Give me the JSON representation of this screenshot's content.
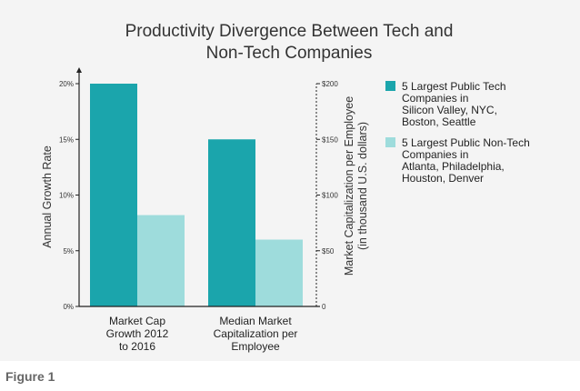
{
  "chart_data": {
    "type": "bar",
    "title": "Productivity Divergence Between Tech and Non-Tech Companies",
    "title_lines": [
      "Productivity Divergence Between Tech and",
      "Non-Tech Companies"
    ],
    "categories": [
      "Market Cap Growth 2012 to 2016",
      "Median Market Capitalization per Employee"
    ],
    "category_lines": [
      [
        "Market Cap",
        "Growth 2012",
        "to 2016"
      ],
      [
        "Median Market",
        "Capitalization per",
        "Employee"
      ]
    ],
    "series": [
      {
        "name": "5 Largest Public Tech Companies in Silicon Valley, NYC, Boston, Seattle",
        "legend_lines": [
          "5 Largest Public Tech",
          "Companies in",
          "Silicon Valley, NYC,",
          "Boston, Seattle"
        ],
        "color": "#1ba5ac",
        "values": [
          20,
          150
        ],
        "units": [
          "%",
          "thousand USD"
        ]
      },
      {
        "name": "5 Largest Public Non-Tech Companies in Atlanta, Philadelphia, Houston, Denver",
        "legend_lines": [
          "5 Largest Public Non-Tech",
          "Companies in",
          "Atlanta, Philadelphia,",
          "Houston, Denver"
        ],
        "color": "#9edcdc",
        "values": [
          8.2,
          60
        ],
        "units": [
          "%",
          "thousand USD"
        ]
      }
    ],
    "left_axis": {
      "label": "Annual Growth Rate",
      "ylim": [
        0,
        20
      ],
      "ticks": [
        0,
        5,
        10,
        15,
        20
      ],
      "tick_labels": [
        "0%",
        "5%",
        "10%",
        "15%",
        "20%"
      ]
    },
    "right_axis": {
      "label_lines": [
        "Market Capitalization per Employee",
        "(in thousand U.S. dollars)"
      ],
      "ylim": [
        0,
        200
      ],
      "ticks": [
        0,
        50,
        100,
        150,
        200
      ],
      "tick_labels": [
        "0",
        "$50",
        "$100",
        "$150",
        "$200"
      ]
    },
    "legend_position": "right"
  },
  "caption": "Figure 1"
}
